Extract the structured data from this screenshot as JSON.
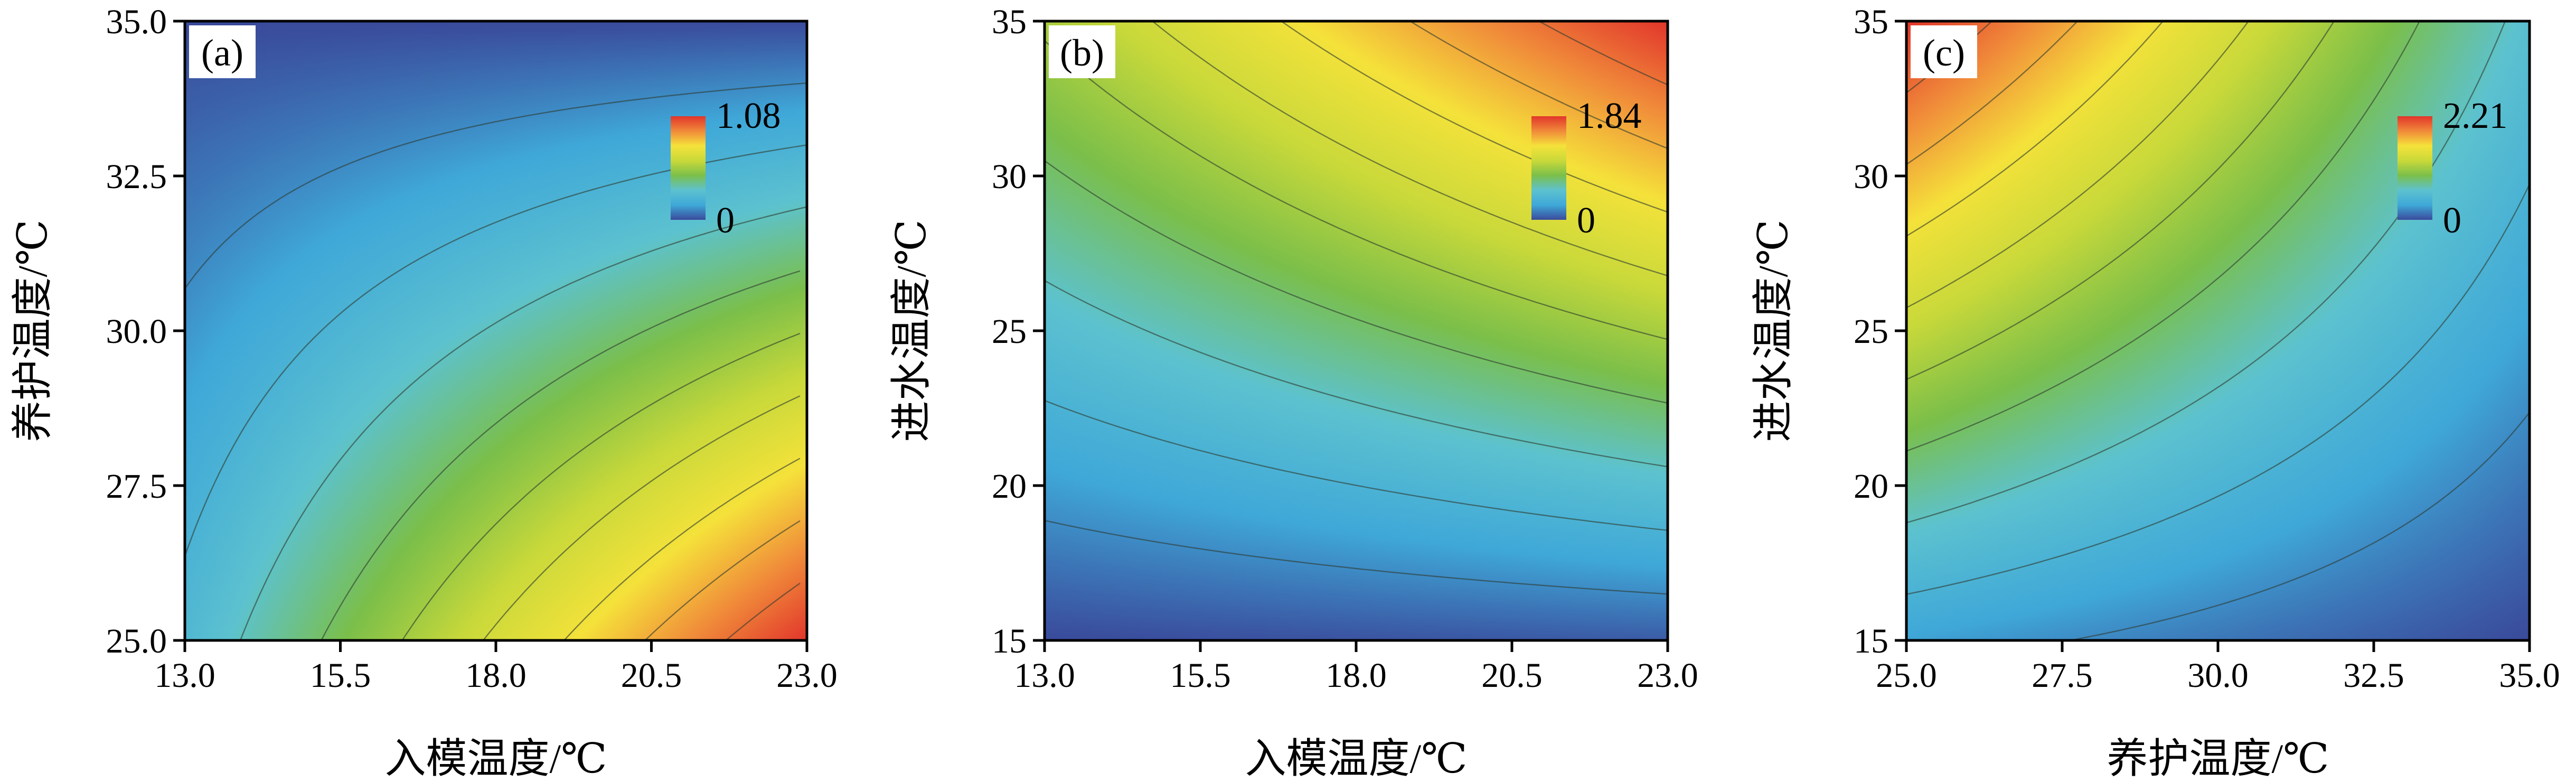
{
  "chart_data": [
    {
      "type": "heatmap",
      "panel_label": "(a)",
      "xlabel": "入模温度/℃",
      "ylabel": "养护温度/℃",
      "xlim": [
        13.0,
        23.0
      ],
      "ylim": [
        25.0,
        35.0
      ],
      "xticks": [
        "13.0",
        "15.5",
        "18.0",
        "20.5",
        "23.0"
      ],
      "yticks": [
        "25.0",
        "27.5",
        "30.0",
        "32.5",
        "35.0"
      ],
      "colorbar": {
        "min": 0,
        "max": 1.08,
        "min_label": "0",
        "max_label": "1.08"
      },
      "corner_values": {
        "x_min_y_min": 0.25,
        "x_max_y_min": 1.08,
        "x_min_y_max": 0.0,
        "x_max_y_max": 0.0
      },
      "contour_levels": 9
    },
    {
      "type": "heatmap",
      "panel_label": "(b)",
      "xlabel": "入模温度/℃",
      "ylabel": "进水温度/℃",
      "xlim": [
        13.0,
        23.0
      ],
      "ylim": [
        15,
        35
      ],
      "xticks": [
        "13.0",
        "15.5",
        "18.0",
        "20.5",
        "23.0"
      ],
      "yticks": [
        "15",
        "20",
        "25",
        "30",
        "35"
      ],
      "colorbar": {
        "min": 0,
        "max": 1.84,
        "min_label": "0",
        "max_label": "1.84"
      },
      "corner_values": {
        "x_min_y_min": 0.0,
        "x_max_y_min": 0.05,
        "x_min_y_max": 0.95,
        "x_max_y_max": 1.84
      },
      "contour_levels": 9
    },
    {
      "type": "heatmap",
      "panel_label": "(c)",
      "xlabel": "养护温度/℃",
      "ylabel": "进水温度/℃",
      "xlim": [
        25.0,
        35.0
      ],
      "ylim": [
        15,
        35
      ],
      "xticks": [
        "25.0",
        "27.5",
        "30.0",
        "32.5",
        "35.0"
      ],
      "yticks": [
        "15",
        "20",
        "25",
        "30",
        "35"
      ],
      "colorbar": {
        "min": 0,
        "max": 2.21,
        "min_label": "0",
        "max_label": "2.21"
      },
      "corner_values": {
        "x_min_y_min": 0.3,
        "x_max_y_min": 0.0,
        "x_min_y_max": 2.21,
        "x_max_y_max": 0.6
      },
      "contour_levels": 9
    }
  ],
  "colors": {
    "colormap": [
      "#3a4a9b",
      "#3fa8d8",
      "#5dc2cf",
      "#7bbf4a",
      "#c9d93a",
      "#f5e23a",
      "#f08a3a",
      "#e2352b"
    ],
    "contour_line": "#2e3a2e",
    "frame": "#000000"
  }
}
